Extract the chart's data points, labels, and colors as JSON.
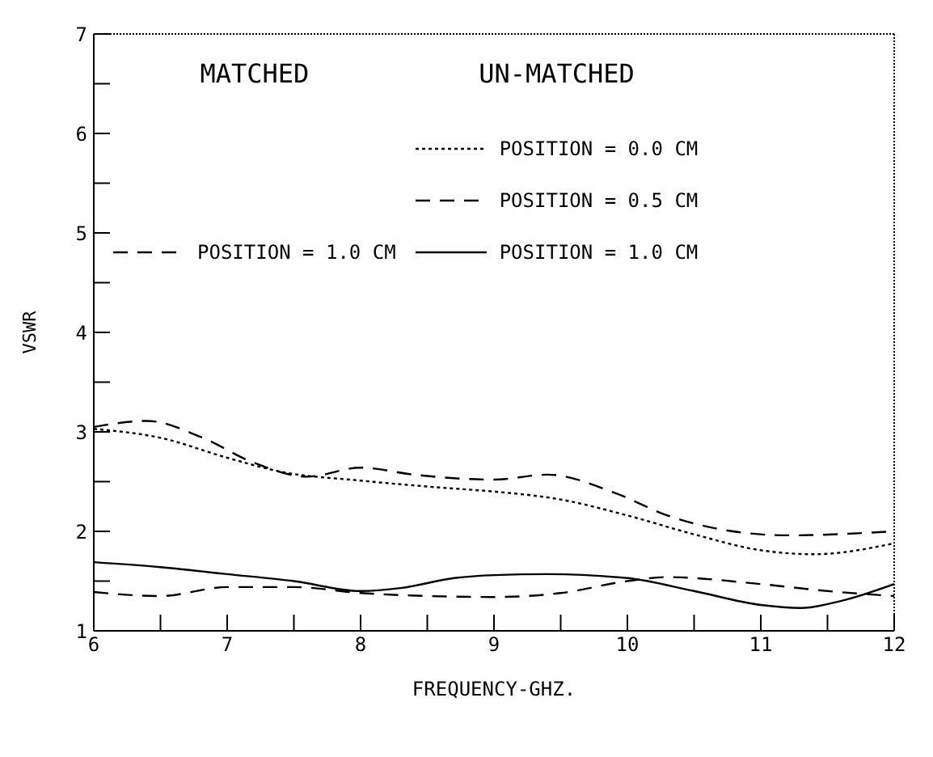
{
  "chart_data": {
    "type": "line",
    "xlabel": "FREQUENCY-GHZ.",
    "ylabel": "VSWR",
    "xlim": [
      6,
      12
    ],
    "xticks": [
      6,
      {
        "value": 6.5,
        "label": null
      },
      7,
      {
        "value": 7.5,
        "label": null
      },
      8,
      {
        "value": 8.5,
        "label": null
      },
      9,
      {
        "value": 9.5,
        "label": null
      },
      10,
      {
        "value": 10.5,
        "label": null
      },
      11,
      {
        "value": 11.5,
        "label": null
      },
      12
    ],
    "ylim": [
      1,
      7
    ],
    "yticks": [
      1,
      {
        "value": 1.5,
        "label": null
      },
      2,
      {
        "value": 2.5,
        "label": null
      },
      3,
      {
        "value": 3.5,
        "label": null
      },
      4,
      {
        "value": 4.5,
        "label": null
      },
      5,
      {
        "value": 5.5,
        "label": null
      },
      6,
      {
        "value": 6.5,
        "label": null
      },
      7
    ],
    "legend": "top",
    "marker": "none",
    "annotations": [
      "MATCHED",
      "UN-MATCHED"
    ],
    "series": [
      {
        "name": "POSITION = 1.0 CM",
        "color": "#000000",
        "line_style": "dashed",
        "x": [
          6,
          6.5,
          7,
          7.5,
          8,
          8.5,
          9,
          9.5,
          10,
          10.3,
          11,
          11.5,
          12
        ],
        "values": [
          1.39,
          1.35,
          1.44,
          1.44,
          1.38,
          1.35,
          1.34,
          1.38,
          1.5,
          1.54,
          1.47,
          1.4,
          1.35
        ]
      },
      {
        "name": "POSITION = 0.0 CM",
        "color": "#000000",
        "line_style": "dotted",
        "x": [
          6,
          6.5,
          7,
          7.4,
          8,
          8.6,
          9,
          9.5,
          10,
          10.5,
          11,
          11.4,
          12
        ],
        "values": [
          3.03,
          2.94,
          2.74,
          2.6,
          2.51,
          2.44,
          2.4,
          2.32,
          2.16,
          1.97,
          1.81,
          1.77,
          1.88
        ]
      },
      {
        "name": "POSITION = 0.5 CM",
        "color": "#000000",
        "line_style": "dashed",
        "x": [
          6,
          6.4,
          6.8,
          7.2,
          7.6,
          8,
          8.4,
          9,
          9.4,
          9.9,
          10.3,
          10.7,
          11.2,
          12
        ],
        "values": [
          3.05,
          3.11,
          2.95,
          2.69,
          2.55,
          2.64,
          2.57,
          2.52,
          2.57,
          2.39,
          2.16,
          2.02,
          1.96,
          2.0
        ]
      },
      {
        "name": "POSITION = 1.0 CM",
        "color": "#000000",
        "line_style": "solid",
        "x": [
          6,
          6.5,
          7,
          7.5,
          8,
          8.3,
          8.7,
          9,
          9.4,
          10,
          10.5,
          11,
          11.3,
          11.6,
          12
        ],
        "values": [
          1.69,
          1.64,
          1.57,
          1.5,
          1.4,
          1.43,
          1.53,
          1.56,
          1.57,
          1.53,
          1.4,
          1.26,
          1.23,
          1.3,
          1.47
        ]
      }
    ]
  }
}
